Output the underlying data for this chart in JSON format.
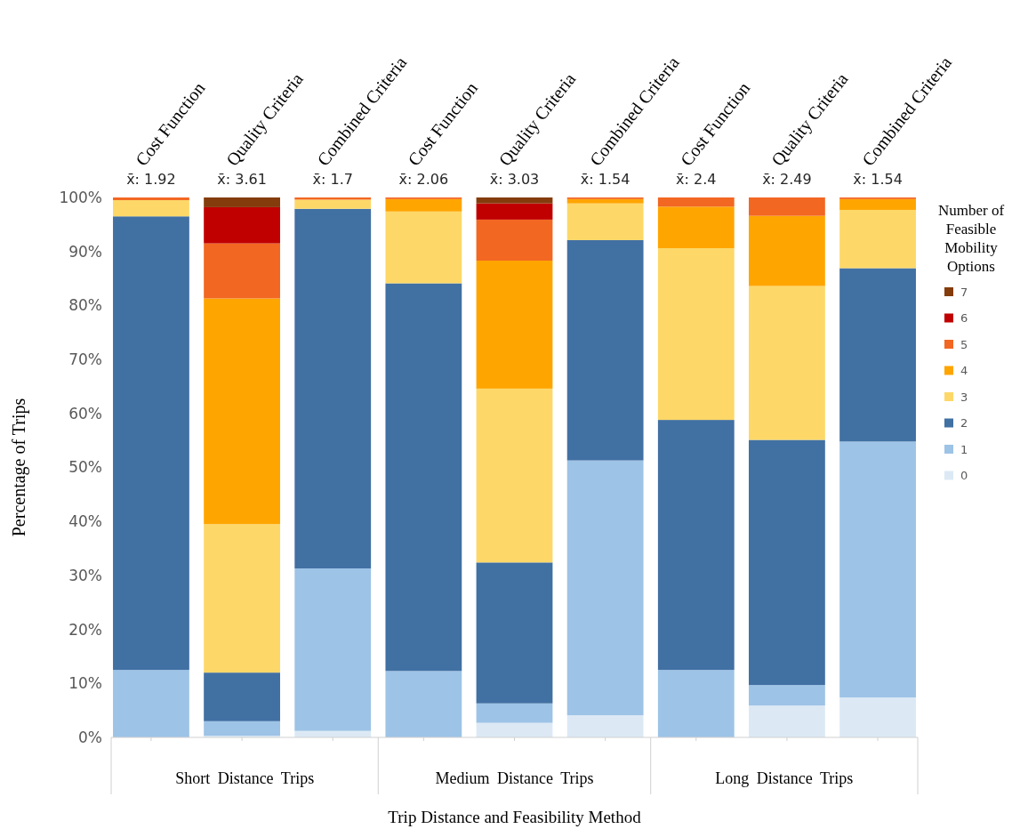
{
  "chart_data": {
    "type": "bar",
    "stacked": true,
    "xlabel": "Trip Distance and Feasibility Method",
    "ylabel": "Percentage of Trips",
    "legend_title": "Number of Feasible Mobility Options",
    "legend": "right",
    "categories": [
      "Cost Function",
      "Quality Criteria",
      "Combined Criteria",
      "Cost Function",
      "Quality Criteria",
      "Combined Criteria",
      "Cost Function",
      "Quality Criteria",
      "Combined Criteria"
    ],
    "ylim": [
      0,
      100
    ],
    "yticks": [
      {
        "value": 0,
        "label": "0%"
      },
      {
        "value": 10,
        "label": "10%"
      },
      {
        "value": 20,
        "label": "20%"
      },
      {
        "value": 30,
        "label": "30%"
      },
      {
        "value": 40,
        "label": "40%"
      },
      {
        "value": 50,
        "label": "50%"
      },
      {
        "value": 60,
        "label": "60%"
      },
      {
        "value": 70,
        "label": "70%"
      },
      {
        "value": 80,
        "label": "80%"
      },
      {
        "value": 90,
        "label": "90%"
      },
      {
        "value": 100,
        "label": "100%"
      }
    ],
    "series": [
      {
        "name": "0",
        "color": "#dce9f5",
        "values": [
          0,
          0.3,
          1.2,
          0,
          2.7,
          4.1,
          0,
          5.9,
          7.4
        ]
      },
      {
        "name": "1",
        "color": "#9dc3e6",
        "values": [
          12.5,
          2.7,
          30.1,
          12.3,
          3.6,
          47.2,
          12.5,
          3.8,
          47.4
        ]
      },
      {
        "name": "2",
        "color": "#4170a3",
        "values": [
          84,
          9,
          66.6,
          71.8,
          26.1,
          40.8,
          46.3,
          45.4,
          32.1
        ]
      },
      {
        "name": "3",
        "color": "#fdd868",
        "values": [
          3,
          27.5,
          1.7,
          13.3,
          32.2,
          6.8,
          31.8,
          28.5,
          10.8
        ]
      },
      {
        "name": "4",
        "color": "#ffa500",
        "values": [
          0,
          41.8,
          0,
          2.3,
          23.7,
          0.8,
          7.7,
          13,
          2
        ]
      },
      {
        "name": "5",
        "color": "#f26722",
        "values": [
          0.5,
          10.2,
          0.4,
          0.3,
          7.6,
          0.3,
          1.7,
          3.4,
          0.3
        ]
      },
      {
        "name": "6",
        "color": "#c00000",
        "values": [
          0,
          6.7,
          0,
          0,
          3,
          0,
          0,
          0,
          0
        ]
      },
      {
        "name": "7",
        "color": "#843c0c",
        "values": [
          0,
          1.8,
          0,
          0,
          1.1,
          0,
          0,
          0,
          0
        ]
      }
    ],
    "annotations": [
      "x̄: 1.92",
      "x̄: 3.61",
      "x̄: 1.7",
      "x̄: 2.06",
      "x̄: 3.03",
      "x̄: 1.54",
      "x̄: 2.4",
      "x̄: 2.49",
      "x̄: 1.54",
      "Short Distance Trips",
      "Medium Distance Trips",
      "Long Distance Trips"
    ]
  }
}
